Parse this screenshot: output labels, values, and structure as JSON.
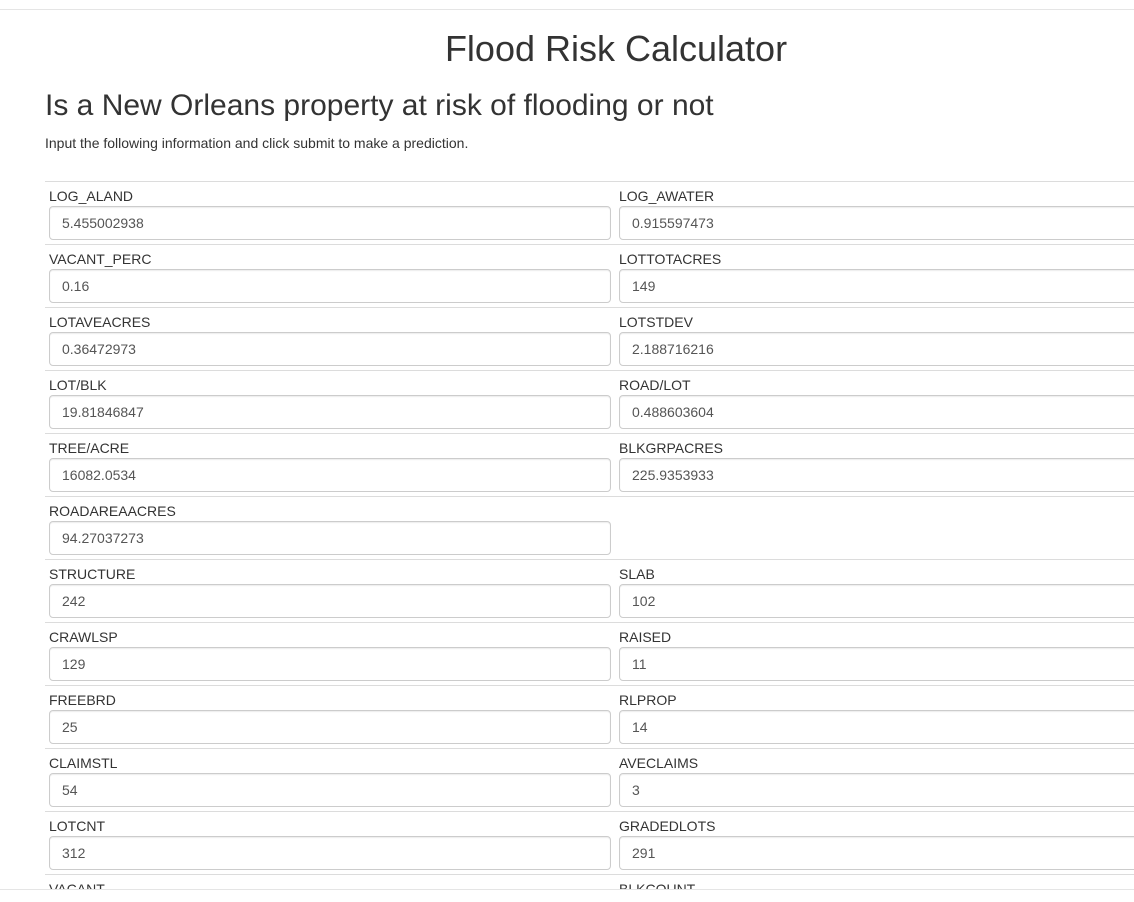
{
  "header": {
    "title": "Flood Risk Calculator",
    "subtitle": "Is a New Orleans property at risk of flooding or not",
    "instructions": "Input the following information and click submit to make a prediction."
  },
  "rows": [
    {
      "left": {
        "label": "LOG_ALAND",
        "value": "5.455002938"
      },
      "right": {
        "label": "LOG_AWATER",
        "value": "0.915597473"
      }
    },
    {
      "left": {
        "label": "VACANT_PERC",
        "value": "0.16"
      },
      "right": {
        "label": "LOTTOTACRES",
        "value": "149"
      }
    },
    {
      "left": {
        "label": "LOTAVEACRES",
        "value": "0.36472973"
      },
      "right": {
        "label": "LOTSTDEV",
        "value": "2.188716216"
      }
    },
    {
      "left": {
        "label": "LOT/BLK",
        "value": "19.81846847"
      },
      "right": {
        "label": "ROAD/LOT",
        "value": "0.488603604"
      }
    },
    {
      "left": {
        "label": "TREE/ACRE",
        "value": "16082.0534"
      },
      "right": {
        "label": "BLKGRPACRES",
        "value": "225.9353933"
      }
    },
    {
      "left": {
        "label": "ROADAREAACRES",
        "value": "94.27037273"
      }
    },
    {
      "left": {
        "label": "STRUCTURE",
        "value": "242"
      },
      "right": {
        "label": "SLAB",
        "value": "102"
      }
    },
    {
      "left": {
        "label": "CRAWLSP",
        "value": "129"
      },
      "right": {
        "label": "RAISED",
        "value": "11"
      }
    },
    {
      "left": {
        "label": "FREEBRD",
        "value": "25"
      },
      "right": {
        "label": "RLPROP",
        "value": "14"
      }
    },
    {
      "left": {
        "label": "CLAIMSTL",
        "value": "54"
      },
      "right": {
        "label": "AVECLAIMS",
        "value": "3"
      }
    },
    {
      "left": {
        "label": "LOTCNT",
        "value": "312"
      },
      "right": {
        "label": "GRADEDLOTS",
        "value": "291"
      }
    },
    {
      "left": {
        "label": "VACANT",
        "value": ""
      },
      "right": {
        "label": "BLKCOUNT",
        "value": ""
      }
    }
  ]
}
